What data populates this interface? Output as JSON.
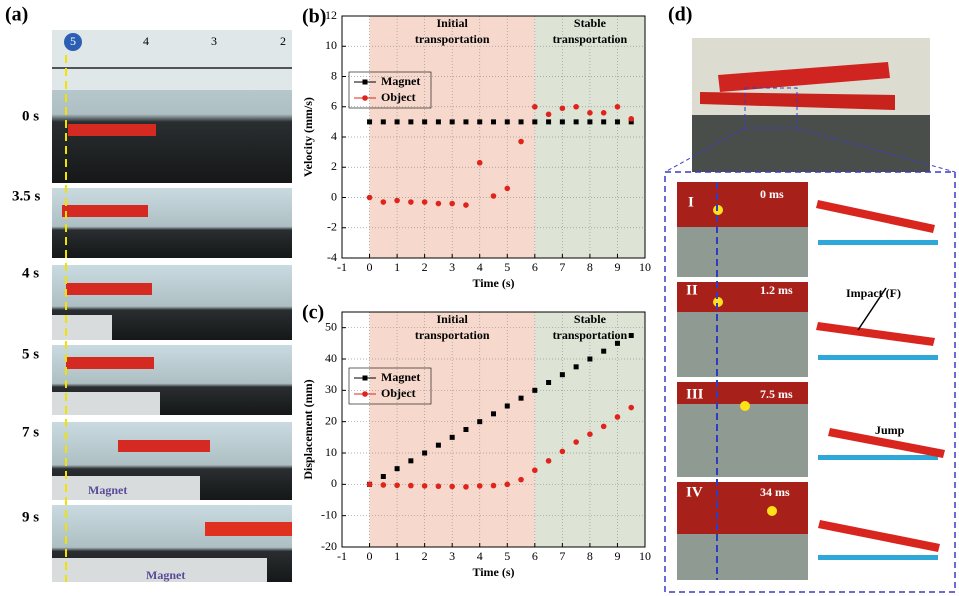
{
  "panels": {
    "a": {
      "label": "(a)",
      "ruler": [
        "5",
        "4",
        "3",
        "2"
      ],
      "times": [
        "0 s",
        "3.5 s",
        "4 s",
        "5 s",
        "7 s",
        "9 s"
      ],
      "magnet_labels": [
        "Magnet",
        "Magnet"
      ]
    },
    "d": {
      "label": "(d)",
      "steps": [
        {
          "roman": "I",
          "time": "0 ms"
        },
        {
          "roman": "II",
          "time": "1.2 ms"
        },
        {
          "roman": "III",
          "time": "7.5 ms"
        },
        {
          "roman": "IV",
          "time": "34 ms"
        }
      ],
      "annotations": [
        "Impact (F)",
        "Jump"
      ]
    }
  },
  "chart_data": [
    {
      "type": "line",
      "panel_label": "(b)",
      "x_label": "Time (s)",
      "y_label": "Velocity (mm/s)",
      "xlim": [
        -1,
        10
      ],
      "xticks": [
        -1,
        0,
        1,
        2,
        3,
        4,
        5,
        6,
        7,
        8,
        9,
        10
      ],
      "ylim": [
        -4,
        12
      ],
      "yticks": [
        -4,
        -2,
        0,
        2,
        4,
        6,
        8,
        10,
        12
      ],
      "grid": true,
      "legend": "upper left",
      "regions": [
        {
          "lines": [
            "Initial",
            "transportation"
          ],
          "range": [
            0,
            6
          ],
          "color": "#f6d9cc"
        },
        {
          "lines": [
            "Stable",
            "transportation"
          ],
          "range": [
            6,
            10
          ],
          "color": "#dde3d5"
        }
      ],
      "x": [
        0,
        0.5,
        1,
        1.5,
        2,
        2.5,
        3,
        3.5,
        4,
        4.5,
        5,
        5.5,
        6,
        6.5,
        7,
        7.5,
        8,
        8.5,
        9,
        9.5
      ],
      "series": [
        {
          "name": "Magnet",
          "color": "#000000",
          "marker": "square",
          "values": [
            5,
            5,
            5,
            5,
            5,
            5,
            5,
            5,
            5,
            5,
            5,
            5,
            5,
            5,
            5,
            5,
            5,
            5,
            5,
            5
          ]
        },
        {
          "name": "Object",
          "color": "#e0241b",
          "marker": "circle",
          "values": [
            0,
            -0.3,
            -0.2,
            -0.3,
            -0.3,
            -0.4,
            -0.4,
            -0.5,
            2.3,
            0.1,
            0.6,
            3.7,
            6.0,
            5.5,
            5.9,
            6.0,
            5.6,
            5.6,
            6.0,
            5.2
          ]
        }
      ]
    },
    {
      "type": "line",
      "panel_label": "(c)",
      "x_label": "Time (s)",
      "y_label": "Displacement (mm)",
      "xlim": [
        -1,
        10
      ],
      "xticks": [
        -1,
        0,
        1,
        2,
        3,
        4,
        5,
        6,
        7,
        8,
        9,
        10
      ],
      "ylim": [
        -20,
        55
      ],
      "yticks": [
        -20,
        -10,
        0,
        10,
        20,
        30,
        40,
        50
      ],
      "grid": true,
      "legend": "upper left",
      "regions": [
        {
          "lines": [
            "Initial",
            "transportation"
          ],
          "range": [
            0,
            6
          ],
          "color": "#f6d9cc"
        },
        {
          "lines": [
            "Stable",
            "transportation"
          ],
          "range": [
            6,
            10
          ],
          "color": "#dde3d5"
        }
      ],
      "x": [
        0,
        0.5,
        1,
        1.5,
        2,
        2.5,
        3,
        3.5,
        4,
        4.5,
        5,
        5.5,
        6,
        6.5,
        7,
        7.5,
        8,
        8.5,
        9,
        9.5
      ],
      "series": [
        {
          "name": "Magnet",
          "color": "#000000",
          "marker": "square",
          "values": [
            0,
            2.5,
            5,
            7.5,
            10,
            12.5,
            15,
            17.5,
            20,
            22.5,
            25,
            27.5,
            30,
            32.5,
            35,
            37.5,
            40,
            42.5,
            45,
            47.5
          ]
        },
        {
          "name": "Object",
          "color": "#e0241b",
          "marker": "circle",
          "values": [
            0,
            -0.2,
            -0.3,
            -0.4,
            -0.5,
            -0.6,
            -0.7,
            -0.8,
            -0.5,
            -0.4,
            0,
            1.5,
            4.5,
            7.5,
            10.5,
            13.5,
            16,
            18.5,
            21.5,
            24.5
          ]
        }
      ]
    }
  ]
}
